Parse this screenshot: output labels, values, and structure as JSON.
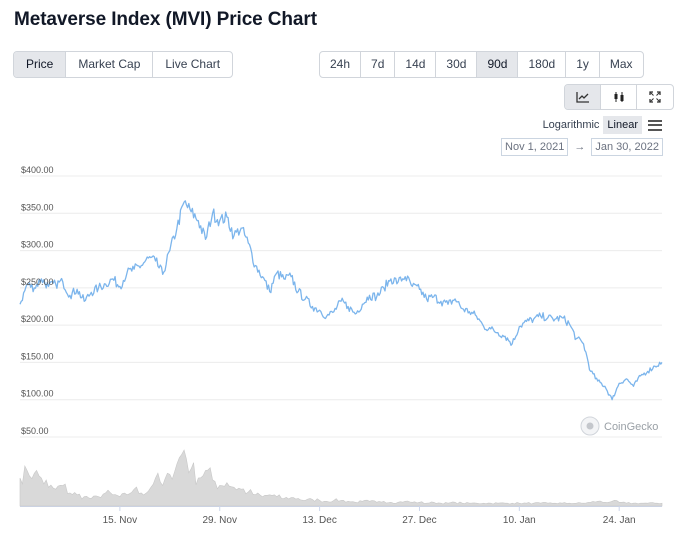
{
  "title": "Metaverse Index (MVI) Price Chart",
  "view_tabs": [
    {
      "label": "Price",
      "active": true
    },
    {
      "label": "Market Cap",
      "active": false
    },
    {
      "label": "Live Chart",
      "active": false
    }
  ],
  "range_tabs": [
    {
      "label": "24h",
      "active": false
    },
    {
      "label": "7d",
      "active": false
    },
    {
      "label": "14d",
      "active": false
    },
    {
      "label": "30d",
      "active": false
    },
    {
      "label": "90d",
      "active": true
    },
    {
      "label": "180d",
      "active": false
    },
    {
      "label": "1y",
      "active": false
    },
    {
      "label": "Max",
      "active": false
    }
  ],
  "tools": [
    {
      "icon": "line-chart-icon",
      "active": true
    },
    {
      "icon": "candlestick-icon",
      "active": false
    },
    {
      "icon": "fullscreen-icon",
      "active": false
    }
  ],
  "scale": {
    "logarithmic": "Logarithmic",
    "linear": "Linear",
    "selected": "linear"
  },
  "date_range": {
    "from": "Nov 1, 2021",
    "arrow": "→",
    "to": "Jan 30, 2022"
  },
  "watermark": "CoinGecko",
  "colors": {
    "price_line": "#7cb5ec",
    "volume_fill": "#d9d9d9",
    "grid": "#ececec",
    "active_bg": "#e5e7eb"
  },
  "chart_data": {
    "type": "line",
    "y_tick_labels": [
      "$50.00",
      "$100.00",
      "$150.00",
      "$200.00",
      "$250.00",
      "$300.00",
      "$350.00",
      "$400.00"
    ],
    "y_tick_values": [
      50,
      100,
      150,
      200,
      250,
      300,
      350,
      400
    ],
    "ylim": [
      0,
      400
    ],
    "x_tick_labels": [
      "15. Nov",
      "29. Nov",
      "13. Dec",
      "27. Dec",
      "10. Jan",
      "24. Jan"
    ],
    "x_tick_days": [
      14,
      28,
      42,
      56,
      70,
      84
    ],
    "xlim_days": [
      0,
      90
    ],
    "grid": "horizontal",
    "series": [
      {
        "values": [
          [
            0,
            228
          ],
          [
            1,
            255
          ],
          [
            2,
            250
          ],
          [
            3,
            262
          ],
          [
            4,
            252
          ],
          [
            5,
            255
          ],
          [
            6,
            258
          ],
          [
            7,
            240
          ],
          [
            8,
            248
          ],
          [
            9,
            232
          ],
          [
            10,
            244
          ],
          [
            11,
            250
          ],
          [
            12,
            255
          ],
          [
            13,
            262
          ],
          [
            14,
            252
          ],
          [
            15,
            270
          ],
          [
            16,
            275
          ],
          [
            17,
            280
          ],
          [
            18,
            290
          ],
          [
            19,
            286
          ],
          [
            20,
            268
          ],
          [
            21,
            300
          ],
          [
            22,
            330
          ],
          [
            23,
            365
          ],
          [
            24,
            352
          ],
          [
            25,
            340
          ],
          [
            26,
            315
          ],
          [
            27,
            350
          ],
          [
            28,
            340
          ],
          [
            29,
            345
          ],
          [
            30,
            320
          ],
          [
            31,
            330
          ],
          [
            32,
            310
          ],
          [
            33,
            280
          ],
          [
            34,
            265
          ],
          [
            35,
            245
          ],
          [
            36,
            270
          ],
          [
            37,
            262
          ],
          [
            38,
            265
          ],
          [
            39,
            245
          ],
          [
            40,
            235
          ],
          [
            41,
            225
          ],
          [
            42,
            220
          ],
          [
            43,
            212
          ],
          [
            44,
            218
          ],
          [
            45,
            232
          ],
          [
            46,
            225
          ],
          [
            47,
            215
          ],
          [
            48,
            228
          ],
          [
            49,
            240
          ],
          [
            50,
            238
          ],
          [
            51,
            250
          ],
          [
            52,
            262
          ],
          [
            53,
            258
          ],
          [
            54,
            265
          ],
          [
            55,
            252
          ],
          [
            56,
            248
          ],
          [
            57,
            235
          ],
          [
            58,
            238
          ],
          [
            59,
            232
          ],
          [
            60,
            228
          ],
          [
            61,
            235
          ],
          [
            62,
            222
          ],
          [
            63,
            218
          ],
          [
            64,
            212
          ],
          [
            65,
            198
          ],
          [
            66,
            195
          ],
          [
            67,
            190
          ],
          [
            68,
            185
          ],
          [
            69,
            175
          ],
          [
            70,
            198
          ],
          [
            71,
            205
          ],
          [
            72,
            208
          ],
          [
            73,
            212
          ],
          [
            74,
            210
          ],
          [
            75,
            208
          ],
          [
            76,
            210
          ],
          [
            77,
            202
          ],
          [
            78,
            182
          ],
          [
            79,
            175
          ],
          [
            80,
            138
          ],
          [
            81,
            125
          ],
          [
            82,
            118
          ],
          [
            83,
            100
          ],
          [
            84,
            122
          ],
          [
            85,
            128
          ],
          [
            86,
            118
          ],
          [
            87,
            132
          ],
          [
            88,
            138
          ],
          [
            89,
            145
          ],
          [
            90,
            150
          ]
        ]
      },
      {
        "name": "volume",
        "values": [
          [
            0,
            30
          ],
          [
            1,
            38
          ],
          [
            2,
            35
          ],
          [
            3,
            30
          ],
          [
            4,
            20
          ],
          [
            5,
            18
          ],
          [
            6,
            22
          ],
          [
            7,
            14
          ],
          [
            8,
            12
          ],
          [
            9,
            10
          ],
          [
            10,
            8
          ],
          [
            11,
            10
          ],
          [
            12,
            14
          ],
          [
            13,
            12
          ],
          [
            14,
            10
          ],
          [
            15,
            12
          ],
          [
            16,
            18
          ],
          [
            17,
            14
          ],
          [
            18,
            16
          ],
          [
            19,
            30
          ],
          [
            20,
            22
          ],
          [
            21,
            34
          ],
          [
            22,
            45
          ],
          [
            23,
            60
          ],
          [
            24,
            40
          ],
          [
            25,
            30
          ],
          [
            26,
            38
          ],
          [
            27,
            28
          ],
          [
            28,
            22
          ],
          [
            29,
            25
          ],
          [
            30,
            20
          ],
          [
            31,
            18
          ],
          [
            32,
            15
          ],
          [
            33,
            12
          ],
          [
            34,
            10
          ],
          [
            35,
            12
          ],
          [
            36,
            10
          ],
          [
            37,
            8
          ],
          [
            38,
            9
          ],
          [
            39,
            8
          ],
          [
            40,
            6
          ],
          [
            41,
            7
          ],
          [
            42,
            6
          ],
          [
            43,
            5
          ],
          [
            44,
            6
          ],
          [
            45,
            6
          ],
          [
            46,
            5
          ],
          [
            47,
            4
          ],
          [
            48,
            5
          ],
          [
            49,
            5
          ],
          [
            50,
            4
          ],
          [
            51,
            5
          ],
          [
            52,
            4
          ],
          [
            53,
            4
          ],
          [
            54,
            5
          ],
          [
            55,
            4
          ],
          [
            56,
            4
          ],
          [
            57,
            3
          ],
          [
            58,
            4
          ],
          [
            59,
            3
          ],
          [
            60,
            3
          ],
          [
            61,
            4
          ],
          [
            62,
            3
          ],
          [
            63,
            3
          ],
          [
            64,
            3
          ],
          [
            65,
            3
          ],
          [
            66,
            3
          ],
          [
            67,
            3
          ],
          [
            68,
            3
          ],
          [
            69,
            3
          ],
          [
            70,
            3
          ],
          [
            71,
            3
          ],
          [
            72,
            3
          ],
          [
            73,
            3
          ],
          [
            74,
            3
          ],
          [
            75,
            3
          ],
          [
            76,
            3
          ],
          [
            77,
            3
          ],
          [
            78,
            3
          ],
          [
            79,
            3
          ],
          [
            80,
            4
          ],
          [
            81,
            5
          ],
          [
            82,
            4
          ],
          [
            83,
            5
          ],
          [
            84,
            4
          ],
          [
            85,
            3
          ],
          [
            86,
            3
          ],
          [
            87,
            3
          ],
          [
            88,
            3
          ],
          [
            89,
            3
          ],
          [
            90,
            3
          ]
        ]
      }
    ]
  }
}
